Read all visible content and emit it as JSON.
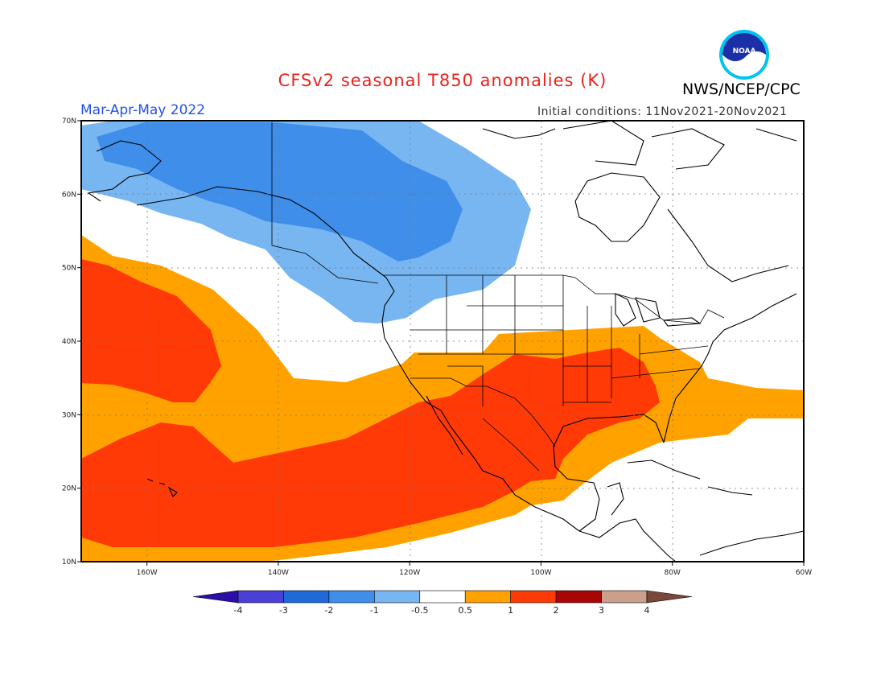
{
  "header": {
    "title": "CFSv2 seasonal T850 anomalies (K)",
    "agency": "NWS/NCEP/CPC",
    "logo_text": "NOAA",
    "season": "Mar-Apr-May 2022",
    "initial_conditions": "Initial conditions: 11Nov2021-20Nov2021"
  },
  "map": {
    "lat_ticks": [
      "70N",
      "60N",
      "50N",
      "40N",
      "30N",
      "20N",
      "10N"
    ],
    "lon_ticks": [
      "160W",
      "140W",
      "120W",
      "100W",
      "80W",
      "60W"
    ],
    "lon_range": [
      -170,
      -60
    ],
    "lat_range": [
      10,
      70
    ],
    "gridlines": true
  },
  "legend": {
    "colors": [
      "#2c0ea8",
      "#4a3fd6",
      "#1f6ad9",
      "#3e8eea",
      "#78b6f2",
      "#ffffff",
      "#ffa200",
      "#ff3a06",
      "#a80606",
      "#caa08c",
      "#7a4838"
    ],
    "labels": [
      "-4",
      "-3",
      "-2",
      "-1",
      "-0.5",
      "0.5",
      "1",
      "2",
      "3",
      "4"
    ]
  }
}
